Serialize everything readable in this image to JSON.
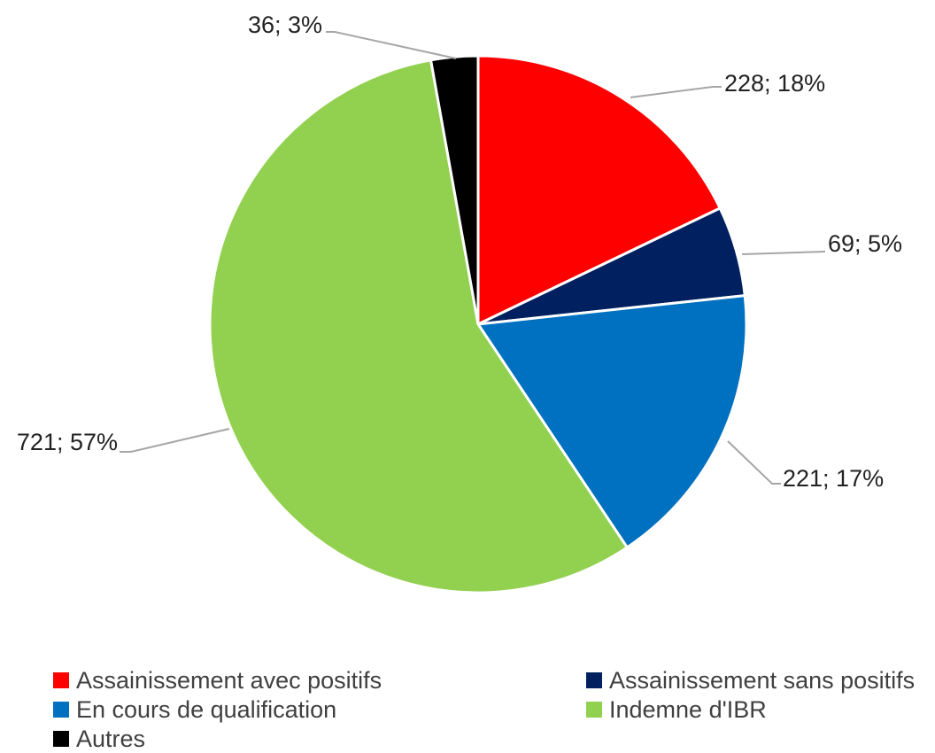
{
  "chart_data": {
    "type": "pie",
    "title": "",
    "categories": [
      "Assainissement avec positifs",
      "Assainissement sans positifs",
      "En cours de qualification",
      "Indemne d'IBR",
      "Autres"
    ],
    "values": [
      228,
      69,
      221,
      721,
      36
    ],
    "percents": [
      18,
      5,
      17,
      57,
      3
    ],
    "data_labels": [
      "228; 18%",
      "69; 5%",
      "221; 17%",
      "721; 57%",
      "36; 3%"
    ],
    "colors": [
      "#ff0000",
      "#002060",
      "#0070c0",
      "#92d050",
      "#000000"
    ],
    "legend_position": "bottom"
  },
  "legend": {
    "items": [
      {
        "label": "Assainissement avec positifs",
        "color": "#ff0000"
      },
      {
        "label": "Assainissement sans positifs",
        "color": "#002060"
      },
      {
        "label": "En cours de qualification",
        "color": "#0070c0"
      },
      {
        "label": "Indemne d'IBR",
        "color": "#92d050"
      },
      {
        "label": "Autres",
        "color": "#000000"
      }
    ]
  }
}
